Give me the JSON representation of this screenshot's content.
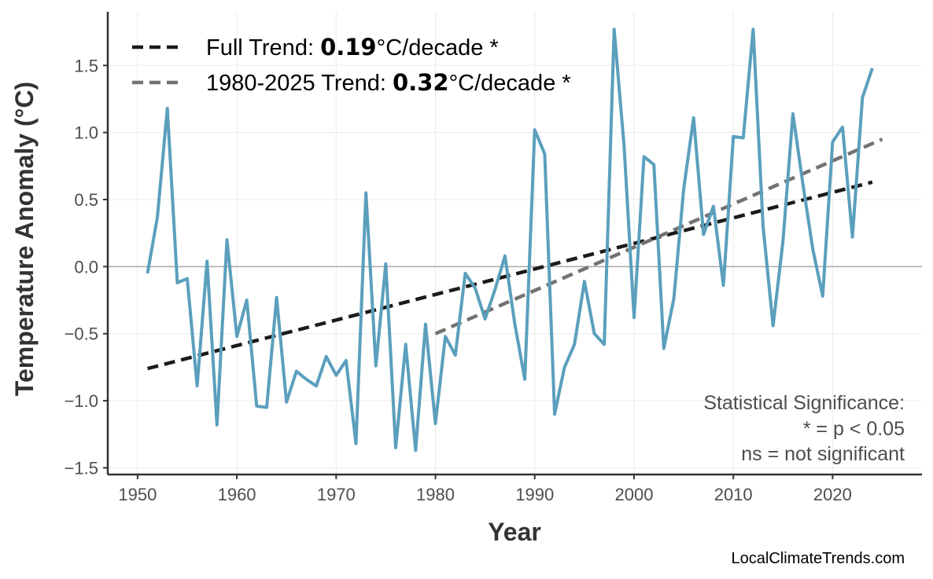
{
  "chart_data": {
    "type": "line",
    "xlabel": "Year",
    "ylabel": "Temperature Anomaly (°C)",
    "xlim": [
      1947,
      2029
    ],
    "ylim": [
      -1.55,
      1.9
    ],
    "x_ticks": [
      1950,
      1960,
      1970,
      1980,
      1990,
      2000,
      2010,
      2020
    ],
    "y_ticks": [
      {
        "value": 1.5,
        "label": "1.5"
      },
      {
        "value": 1.0,
        "label": "1.0"
      },
      {
        "value": 0.5,
        "label": "0.5"
      },
      {
        "value": 0.0,
        "label": "0.0"
      },
      {
        "value": -0.5,
        "label": "−0.5"
      },
      {
        "value": -1.0,
        "label": "−1.0"
      },
      {
        "value": -1.5,
        "label": "−1.5"
      }
    ],
    "grid": true,
    "zero_line": true,
    "legend_position": "top-left",
    "series": [
      {
        "color": "#5b9fbd",
        "x": [
          1951,
          1952,
          1953,
          1954,
          1955,
          1956,
          1957,
          1958,
          1959,
          1960,
          1961,
          1962,
          1963,
          1964,
          1965,
          1966,
          1967,
          1968,
          1969,
          1970,
          1971,
          1972,
          1973,
          1974,
          1975,
          1976,
          1977,
          1978,
          1979,
          1980,
          1981,
          1982,
          1983,
          1984,
          1985,
          1986,
          1987,
          1988,
          1989,
          1990,
          1991,
          1992,
          1993,
          1994,
          1995,
          1996,
          1997,
          1998,
          1999,
          2000,
          2001,
          2002,
          2003,
          2004,
          2005,
          2006,
          2007,
          2008,
          2009,
          2010,
          2011,
          2012,
          2013,
          2014,
          2015,
          2016,
          2017,
          2018,
          2019,
          2020,
          2021,
          2022,
          2023,
          2024
        ],
        "values": [
          -0.05,
          0.37,
          1.18,
          -0.12,
          -0.09,
          -0.89,
          0.04,
          -1.18,
          0.2,
          -0.52,
          -0.25,
          -1.04,
          -1.05,
          -0.23,
          -1.01,
          -0.78,
          -0.84,
          -0.89,
          -0.67,
          -0.81,
          -0.7,
          -1.32,
          0.55,
          -0.74,
          0.02,
          -1.35,
          -0.58,
          -1.37,
          -0.43,
          -1.17,
          -0.52,
          -0.66,
          -0.05,
          -0.16,
          -0.39,
          -0.17,
          0.08,
          -0.43,
          -0.84,
          1.02,
          0.84,
          -1.1,
          -0.75,
          -0.58,
          -0.11,
          -0.5,
          -0.58,
          1.77,
          0.9,
          -0.38,
          0.82,
          0.76,
          -0.61,
          -0.24,
          0.58,
          1.11,
          0.24,
          0.45,
          -0.14,
          0.97,
          0.96,
          1.77,
          0.3,
          -0.44,
          0.19,
          1.14,
          0.62,
          0.13,
          -0.22,
          0.93,
          1.04,
          0.22,
          1.26,
          1.48
        ]
      }
    ],
    "trend_lines": [
      {
        "label_prefix": "Full Trend: ",
        "value_text": "0.19",
        "label_suffix": "°C/decade *",
        "color": "#1a1a1a",
        "x": [
          1951,
          2024
        ],
        "y": [
          -0.76,
          0.63
        ]
      },
      {
        "label_prefix": "1980-2025 Trend: ",
        "value_text": "0.32",
        "label_suffix": "°C/decade *",
        "color": "#737373",
        "x": [
          1980,
          2025
        ],
        "y": [
          -0.5,
          0.95
        ]
      }
    ],
    "annotations": {
      "significance_title": "Statistical Significance:",
      "significance_star": "* = p < 0.05",
      "significance_ns": "ns = not significant"
    }
  },
  "credit": "LocalClimateTrends.com",
  "colors": {
    "series": "#5b9fbd",
    "full_trend": "#1a1a1a",
    "recent_trend": "#737373",
    "axis": "#333333",
    "grid": "#ebebeb",
    "zero_line": "#aaaaaa"
  }
}
